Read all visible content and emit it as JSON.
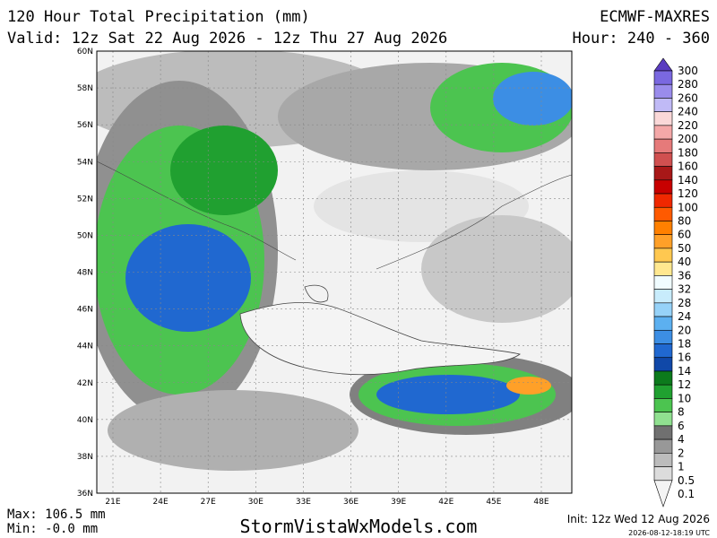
{
  "header": {
    "title": "120 Hour Total Precipitation (mm)",
    "model": "ECMWF-MAXRES",
    "valid": "Valid: 12z Sat 22 Aug 2026 - 12z Thu 27 Aug 2026",
    "hour": "Hour: 240 - 360"
  },
  "map": {
    "lat_labels": [
      "60N",
      "58N",
      "56N",
      "54N",
      "52N",
      "50N",
      "48N",
      "46N",
      "44N",
      "42N",
      "40N",
      "38N",
      "36N"
    ],
    "lon_labels": [
      "21E",
      "24E",
      "27E",
      "30E",
      "33E",
      "36E",
      "39E",
      "42E",
      "45E",
      "48E"
    ]
  },
  "colorbar": {
    "levels": [
      {
        "label": "300",
        "color": "#5a3cc0"
      },
      {
        "label": "280",
        "color": "#7a68e0"
      },
      {
        "label": "260",
        "color": "#9a8cec"
      },
      {
        "label": "240",
        "color": "#c0baf6"
      },
      {
        "label": "220",
        "color": "#fad8d8"
      },
      {
        "label": "200",
        "color": "#f4a8a8"
      },
      {
        "label": "180",
        "color": "#e67a7a"
      },
      {
        "label": "160",
        "color": "#d05050"
      },
      {
        "label": "140",
        "color": "#a81818"
      },
      {
        "label": "120",
        "color": "#c80000"
      },
      {
        "label": "100",
        "color": "#f02800"
      },
      {
        "label": "80",
        "color": "#ff5a00"
      },
      {
        "label": "60",
        "color": "#ff8000"
      },
      {
        "label": "50",
        "color": "#ffa028"
      },
      {
        "label": "40",
        "color": "#ffc850"
      },
      {
        "label": "36",
        "color": "#ffe890"
      },
      {
        "label": "32",
        "color": "#f0fcff"
      },
      {
        "label": "28",
        "color": "#c8ecfc"
      },
      {
        "label": "24",
        "color": "#96d2f8"
      },
      {
        "label": "20",
        "color": "#5cb0f0"
      },
      {
        "label": "18",
        "color": "#3c8ee4"
      },
      {
        "label": "16",
        "color": "#2068d0"
      },
      {
        "label": "14",
        "color": "#1048a8"
      },
      {
        "label": "12",
        "color": "#0c7a1c"
      },
      {
        "label": "10",
        "color": "#20a030"
      },
      {
        "label": "8",
        "color": "#4cc450"
      },
      {
        "label": "6",
        "color": "#90e090"
      },
      {
        "label": "4",
        "color": "#707070"
      },
      {
        "label": "2",
        "color": "#989898"
      },
      {
        "label": "1",
        "color": "#bcbcbc"
      },
      {
        "label": "0.5",
        "color": "#dcdcdc"
      },
      {
        "label": "0.1",
        "color": "#f4f4f4"
      }
    ]
  },
  "footer": {
    "max": "Max: 106.5 mm",
    "min": "Min: -0.0 mm",
    "site": "StormVistaWxModels.com",
    "init": "Init: 12z Wed 12 Aug 2026",
    "stamp": "2026-08-12-18:19 UTC"
  }
}
